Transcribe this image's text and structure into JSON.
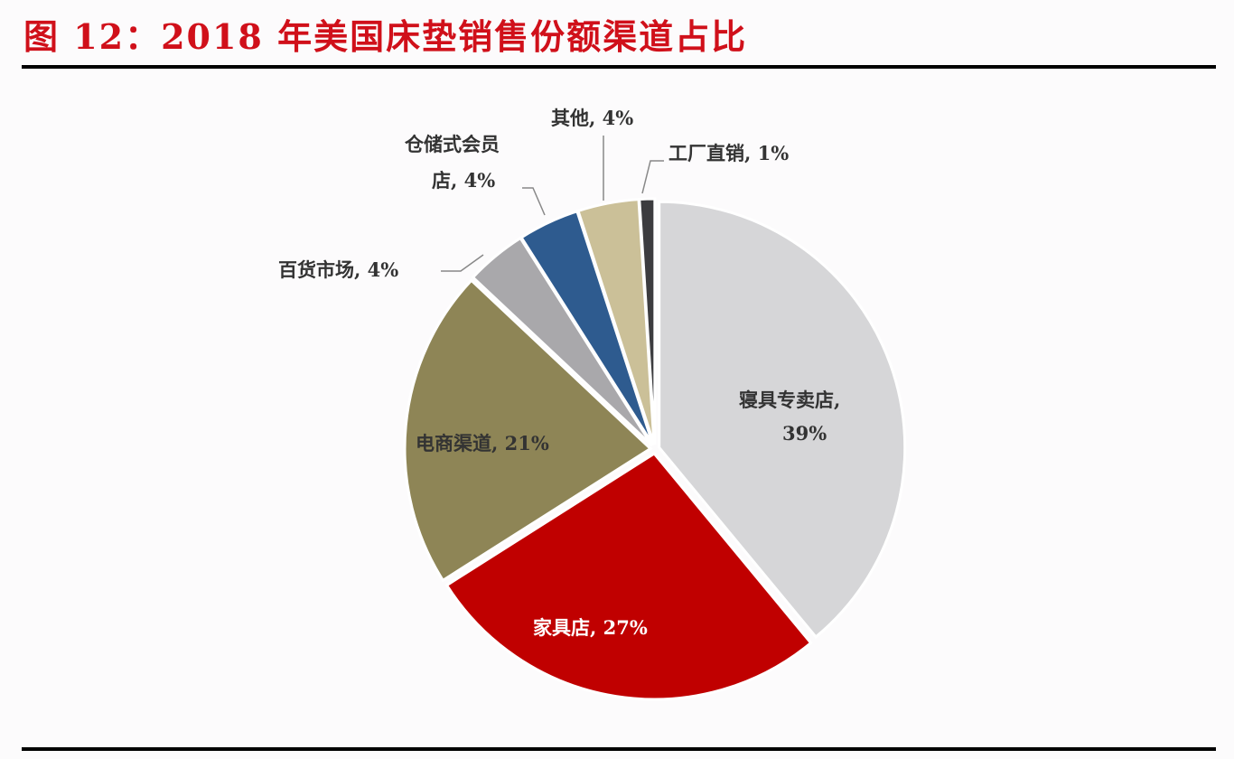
{
  "title": "图 12：2018 年美国床垫销售份额渠道占比",
  "chart_data": {
    "type": "pie",
    "title": "图 12：2018 年美国床垫销售份额渠道占比",
    "categories": [
      "寝具专卖店",
      "家具店",
      "电商渠道",
      "百货市场",
      "仓储式会员店",
      "其他",
      "工厂直销"
    ],
    "values": [
      39,
      27,
      21,
      4,
      4,
      4,
      1
    ],
    "unit": "%",
    "colors": [
      "#d6d6d8",
      "#c00000",
      "#8e8556",
      "#a9a8ab",
      "#2e5b8f",
      "#cbc098",
      "#3c3c3f"
    ],
    "labels": {
      "s0a": "寝具专卖店,",
      "s0b": "39%",
      "s1": "家具店, 27%",
      "s2": "电商渠道, 21%",
      "s3": "百货市场, 4%",
      "s4a": "仓储式会员",
      "s4b": "店, 4%",
      "s5": "其他, 4%",
      "s6": "工厂直销, 1%"
    }
  }
}
